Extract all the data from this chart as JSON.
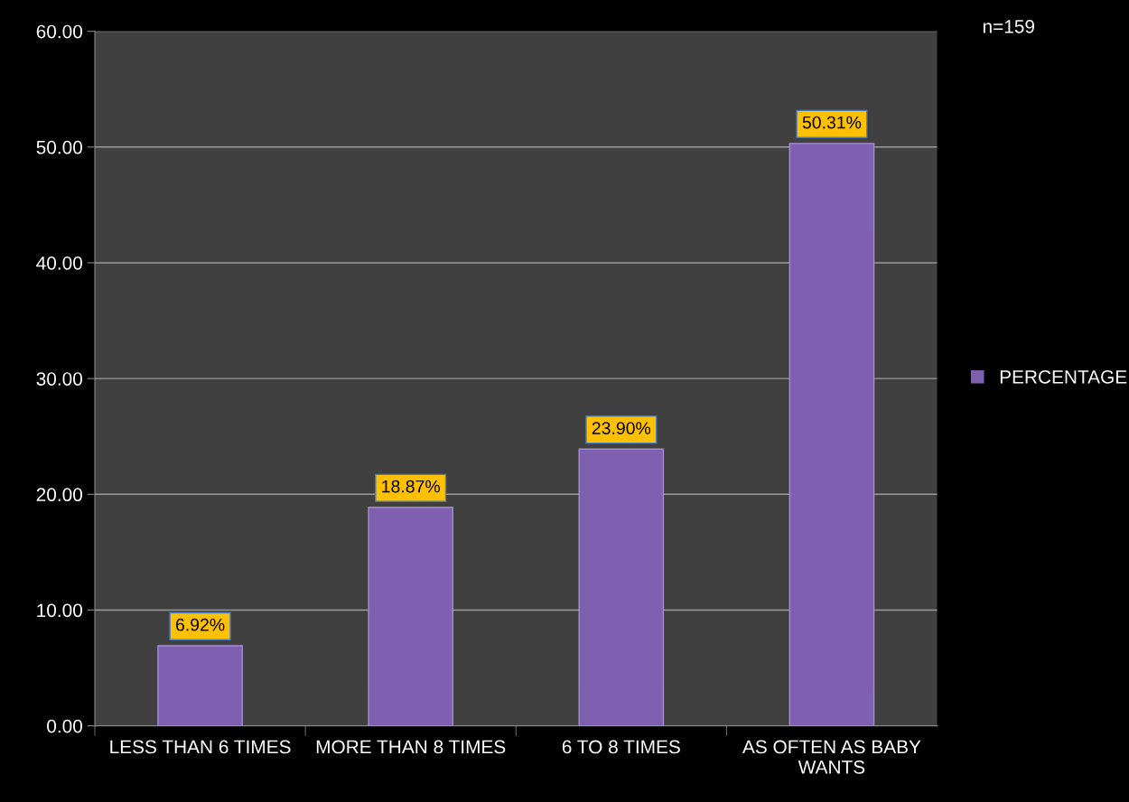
{
  "chart_data": {
    "type": "bar",
    "categories": [
      "LESS THAN 6 TIMES",
      "MORE THAN 8 TIMES",
      "6 TO 8 TIMES",
      "AS OFTEN AS BABY WANTS"
    ],
    "series": [
      {
        "name": "PERCENTAGE",
        "color": "#7f5fb0",
        "values": [
          6.92,
          18.87,
          23.9,
          50.31
        ],
        "value_labels": [
          "6.92%",
          "18.87%",
          "23.90%",
          "50.31%"
        ]
      }
    ],
    "ylim": [
      0,
      60
    ],
    "yticks": [
      {
        "value": 0,
        "label": "0.00"
      },
      {
        "value": 10,
        "label": "10.00"
      },
      {
        "value": 20,
        "label": "20.00"
      },
      {
        "value": 30,
        "label": "30.00"
      },
      {
        "value": 40,
        "label": "40.00"
      },
      {
        "value": 50,
        "label": "50.00"
      },
      {
        "value": 60,
        "label": "60.00"
      }
    ],
    "grid": "y",
    "legend": "right",
    "annotations": [
      "n=159"
    ]
  }
}
